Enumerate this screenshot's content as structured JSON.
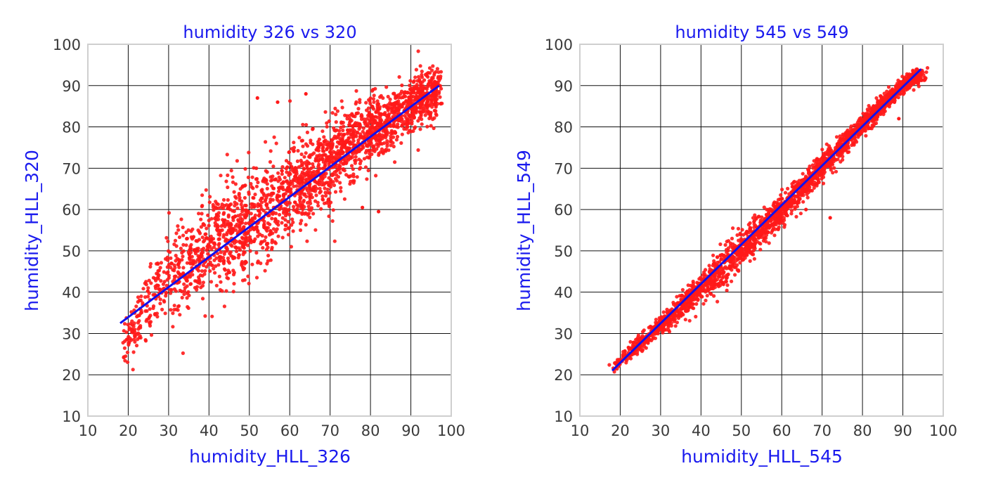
{
  "colors": {
    "points": "#ff1a1a",
    "fit_line": "#1010ee",
    "text_accent": "#1a1aee",
    "grid": "#111111",
    "frame": "#cfcfcf",
    "tick_text": "#3a3a3a"
  },
  "chart_data": [
    {
      "type": "scatter",
      "title": "humidity 326 vs 320",
      "xlabel": "humidity_HLL_326",
      "ylabel": "humidity_HLL_320",
      "xlim": [
        10,
        100
      ],
      "ylim": [
        10,
        100
      ],
      "xticks": [
        10,
        20,
        30,
        40,
        50,
        60,
        70,
        80,
        90,
        100
      ],
      "yticks": [
        10,
        20,
        30,
        40,
        50,
        60,
        70,
        80,
        90,
        100
      ],
      "grid": true,
      "point_distribution": {
        "x_range": [
          18,
          97
        ],
        "trend": [
          [
            18,
            26
          ],
          [
            30,
            44
          ],
          [
            40,
            52
          ],
          [
            50,
            56
          ],
          [
            60,
            64
          ],
          [
            70,
            72
          ],
          [
            80,
            79
          ],
          [
            90,
            85
          ],
          [
            97,
            89
          ]
        ],
        "spread": [
          [
            18,
            2.5
          ],
          [
            30,
            5
          ],
          [
            40,
            6
          ],
          [
            55,
            6
          ],
          [
            70,
            5
          ],
          [
            85,
            3.5
          ],
          [
            97,
            3
          ]
        ],
        "count": 2400,
        "outliers": [
          [
            52,
            87
          ],
          [
            64,
            88
          ],
          [
            82,
            59.5
          ],
          [
            78,
            60.5
          ],
          [
            57,
            86
          ]
        ]
      },
      "series": [
        {
          "type": "line",
          "x": [
            18,
            97
          ],
          "y": [
            32.5,
            90
          ]
        }
      ]
    },
    {
      "type": "scatter",
      "title": "humidity 545 vs 549",
      "xlabel": "humidity_HLL_545",
      "ylabel": "humidity_HLL_549",
      "xlim": [
        10,
        100
      ],
      "ylim": [
        10,
        100
      ],
      "xticks": [
        10,
        20,
        30,
        40,
        50,
        60,
        70,
        80,
        90,
        100
      ],
      "yticks": [
        10,
        20,
        30,
        40,
        50,
        60,
        70,
        80,
        90,
        100
      ],
      "grid": true,
      "point_distribution": {
        "x_range": [
          18,
          95
        ],
        "trend": [
          [
            18,
            21.5
          ],
          [
            30,
            32
          ],
          [
            40,
            41
          ],
          [
            50,
            50.5
          ],
          [
            60,
            60
          ],
          [
            70,
            70.5
          ],
          [
            80,
            80.5
          ],
          [
            90,
            90
          ],
          [
            95,
            93
          ]
        ],
        "spread": [
          [
            18,
            0.8
          ],
          [
            30,
            1.2
          ],
          [
            45,
            2.2
          ],
          [
            60,
            1.8
          ],
          [
            75,
            1.3
          ],
          [
            95,
            0.9
          ]
        ],
        "count": 2400,
        "outliers": [
          [
            89,
            82
          ],
          [
            72,
            58
          ],
          [
            66,
            60
          ]
        ]
      },
      "series": [
        {
          "type": "line",
          "x": [
            18,
            94.5
          ],
          "y": [
            21,
            94
          ]
        }
      ]
    }
  ]
}
